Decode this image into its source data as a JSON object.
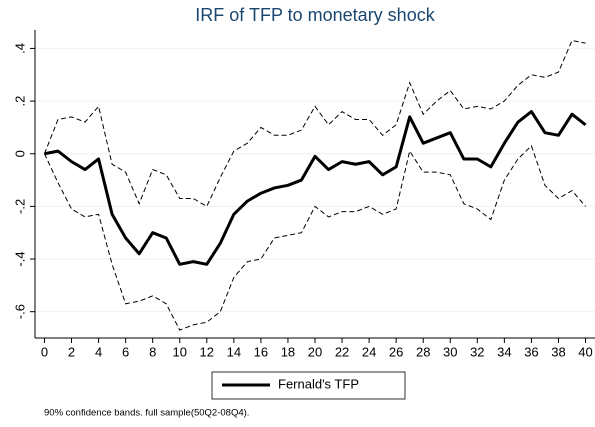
{
  "chart_data": {
    "type": "line",
    "title": "IRF of TFP to monetary shock",
    "x": [
      0,
      1,
      2,
      3,
      4,
      5,
      6,
      7,
      8,
      9,
      10,
      11,
      12,
      13,
      14,
      15,
      16,
      17,
      18,
      19,
      20,
      21,
      22,
      23,
      24,
      25,
      26,
      27,
      28,
      29,
      30,
      31,
      32,
      33,
      34,
      35,
      36,
      37,
      38,
      39,
      40
    ],
    "series": [
      {
        "name": "Fernald's TFP",
        "color": "#000000",
        "values": [
          0,
          0.01,
          -0.03,
          -0.06,
          -0.02,
          -0.23,
          -0.32,
          -0.38,
          -0.3,
          -0.32,
          -0.42,
          -0.41,
          -0.42,
          -0.34,
          -0.23,
          -0.18,
          -0.15,
          -0.13,
          -0.12,
          -0.1,
          -0.01,
          -0.06,
          -0.03,
          -0.04,
          -0.03,
          -0.08,
          -0.05,
          0.14,
          0.04,
          0.06,
          0.08,
          -0.02,
          -0.02,
          -0.05,
          0.04,
          0.12,
          0.16,
          0.08,
          0.07,
          0.15,
          0.11
        ]
      }
    ],
    "band_upper": [
      0,
      0.13,
      0.14,
      0.12,
      0.18,
      -0.04,
      -0.07,
      -0.19,
      -0.06,
      -0.08,
      -0.17,
      -0.17,
      -0.2,
      -0.09,
      0.01,
      0.04,
      0.1,
      0.07,
      0.07,
      0.09,
      0.18,
      0.11,
      0.16,
      0.13,
      0.13,
      0.07,
      0.11,
      0.27,
      0.15,
      0.2,
      0.24,
      0.17,
      0.18,
      0.17,
      0.2,
      0.26,
      0.3,
      0.29,
      0.31,
      0.43,
      0.42
    ],
    "band_lower": [
      0,
      -0.11,
      -0.21,
      -0.24,
      -0.23,
      -0.42,
      -0.57,
      -0.56,
      -0.54,
      -0.57,
      -0.67,
      -0.65,
      -0.64,
      -0.6,
      -0.47,
      -0.41,
      -0.4,
      -0.32,
      -0.31,
      -0.3,
      -0.2,
      -0.24,
      -0.22,
      -0.22,
      -0.2,
      -0.23,
      -0.21,
      0.01,
      -0.07,
      -0.07,
      -0.08,
      -0.19,
      -0.21,
      -0.25,
      -0.1,
      -0.02,
      0.03,
      -0.12,
      -0.17,
      -0.14,
      -0.2
    ],
    "band_color": "#000000",
    "xlim": [
      -0.7,
      40.7
    ],
    "xticks": [
      0,
      2,
      4,
      6,
      8,
      10,
      12,
      14,
      16,
      18,
      20,
      22,
      24,
      26,
      28,
      30,
      32,
      34,
      36,
      38,
      40
    ],
    "ylim": [
      -0.7,
      0.47
    ],
    "yticks": [
      {
        "value": 0.4,
        "label": ".4"
      },
      {
        "value": 0.2,
        "label": ".2"
      },
      0,
      {
        "value": -0.2,
        "label": "-.2"
      },
      {
        "value": -0.4,
        "label": "-.4"
      },
      {
        "value": -0.6,
        "label": "-.6"
      }
    ],
    "grid": true,
    "legend": "bottom",
    "note": "90% confidence bands. full sample(50Q2-08Q4)."
  }
}
